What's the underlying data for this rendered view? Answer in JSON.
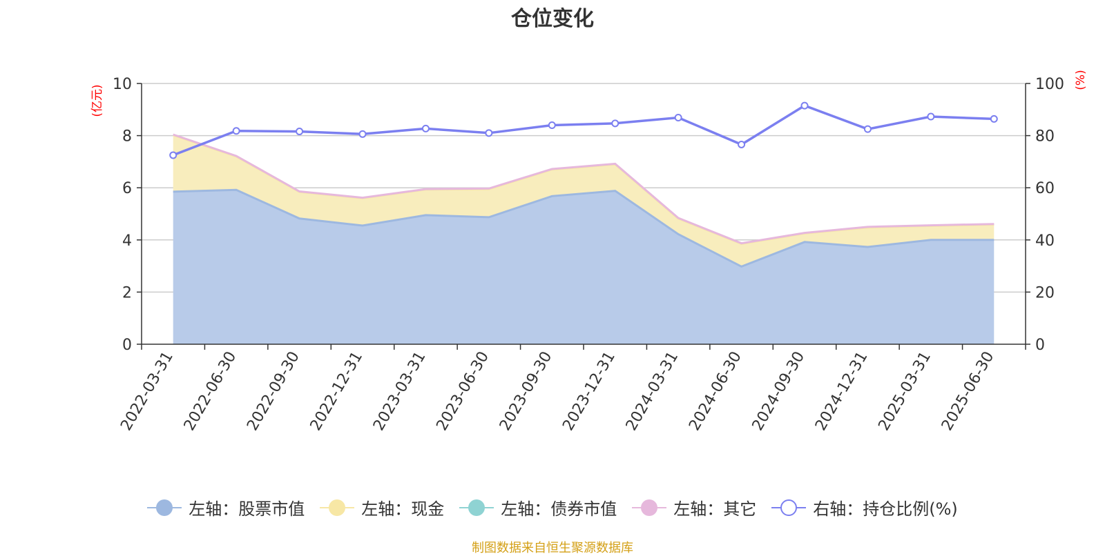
{
  "title": "仓位变化",
  "source_note": "制图数据来自恒生聚源数据库",
  "chart_data": {
    "type": "area",
    "title": "仓位变化",
    "categories": [
      "2022-03-31",
      "2022-06-30",
      "2022-09-30",
      "2022-12-31",
      "2023-03-31",
      "2023-06-30",
      "2023-09-30",
      "2023-12-31",
      "2024-03-31",
      "2024-06-30",
      "2024-09-30",
      "2024-12-31",
      "2025-03-31",
      "2025-06-30"
    ],
    "left_axis": {
      "unit_label": "(亿元)",
      "ylim": [
        0,
        10
      ],
      "ticks": [
        "0",
        "2",
        "4",
        "6",
        "8",
        "10"
      ]
    },
    "right_axis": {
      "unit_label": "(%)",
      "ylim": [
        0,
        100
      ],
      "ticks": [
        "0",
        "20",
        "40",
        "60",
        "80",
        "100"
      ]
    },
    "grid": true,
    "legend_position": "bottom",
    "series": [
      {
        "name": "左轴：股票市值",
        "axis": "left",
        "type": "area",
        "stack": true,
        "color": "#9db8e0",
        "fill": "#b8cbe9",
        "values": [
          5.85,
          5.92,
          4.82,
          4.55,
          4.95,
          4.87,
          5.68,
          5.88,
          4.22,
          2.98,
          3.92,
          3.73,
          4.0,
          4.0
        ]
      },
      {
        "name": "左轴：现金",
        "axis": "left",
        "type": "area",
        "stack": true,
        "color": "#f7e7a5",
        "fill": "#f8edbd",
        "values": [
          2.17,
          1.28,
          1.02,
          1.05,
          0.98,
          1.08,
          1.02,
          1.02,
          0.6,
          0.87,
          0.33,
          0.75,
          0.54,
          0.59
        ]
      },
      {
        "name": "左轴：债券市值",
        "axis": "left",
        "type": "area",
        "stack": true,
        "color": "#8fd3d3",
        "fill": "#a8dede",
        "values": [
          0,
          0,
          0,
          0,
          0,
          0,
          0,
          0,
          0,
          0,
          0,
          0,
          0,
          0
        ]
      },
      {
        "name": "左轴：其它",
        "axis": "left",
        "type": "area",
        "stack": true,
        "color": "#e6b8dc",
        "fill": "#e6b8dc",
        "values": [
          0.02,
          0.02,
          0.02,
          0.02,
          0.02,
          0.02,
          0.02,
          0.02,
          0.02,
          0.02,
          0.02,
          0.02,
          0.02,
          0.02
        ]
      },
      {
        "name": "右轴：持仓比例(%)",
        "axis": "right",
        "type": "line",
        "color": "#7b7ff0",
        "values": [
          72.5,
          81.8,
          81.6,
          80.6,
          82.7,
          81.0,
          84.0,
          84.7,
          86.9,
          76.6,
          91.5,
          82.5,
          87.3,
          86.4
        ]
      }
    ]
  }
}
